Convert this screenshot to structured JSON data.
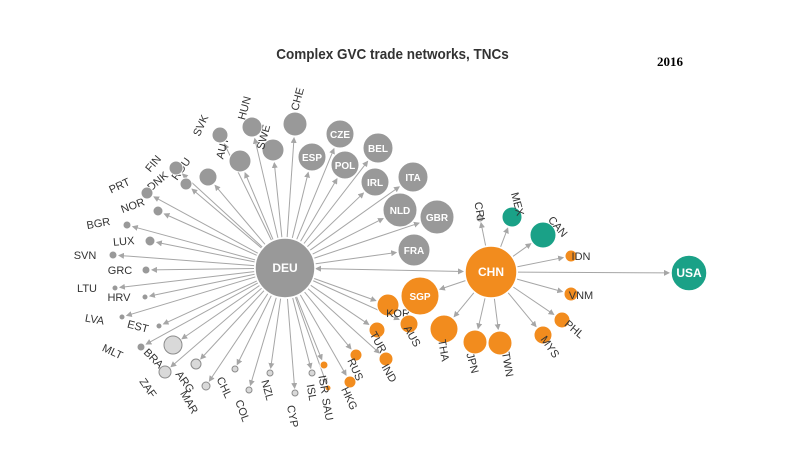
{
  "title": "Complex GVC trade networks, TNCs",
  "year": "2016",
  "colors": {
    "grey": "#999999",
    "lightgrey": "#d9d9d9",
    "orange": "#f28c1e",
    "green": "#1aa187",
    "edge": "#a6a6a6",
    "stroke": "#6b6b6b"
  },
  "hubs": [
    "DEU",
    "CHN",
    "USA"
  ],
  "hub_links": [
    {
      "from": "DEU",
      "to": "CHN",
      "bidirectional": true
    },
    {
      "from": "CHN",
      "to": "USA",
      "bidirectional": false
    }
  ],
  "nodes": [
    {
      "id": "DEU",
      "color": "grey",
      "hub": true
    },
    {
      "id": "CHN",
      "color": "orange",
      "hub": true
    },
    {
      "id": "USA",
      "color": "green",
      "hub": true
    },
    {
      "id": "CZE",
      "color": "grey",
      "parent": "DEU",
      "inside": true
    },
    {
      "id": "ESP",
      "color": "grey",
      "parent": "DEU",
      "inside": true
    },
    {
      "id": "BEL",
      "color": "grey",
      "parent": "DEU",
      "inside": true
    },
    {
      "id": "POL",
      "color": "grey",
      "parent": "DEU",
      "inside": true
    },
    {
      "id": "IRL",
      "color": "grey",
      "parent": "DEU",
      "inside": true
    },
    {
      "id": "ITA",
      "color": "grey",
      "parent": "DEU",
      "inside": true
    },
    {
      "id": "NLD",
      "color": "grey",
      "parent": "DEU",
      "inside": true
    },
    {
      "id": "GBR",
      "color": "grey",
      "parent": "DEU",
      "inside": true
    },
    {
      "id": "FRA",
      "color": "grey",
      "parent": "DEU",
      "inside": true
    },
    {
      "id": "CHE",
      "color": "grey",
      "parent": "DEU"
    },
    {
      "id": "SWE",
      "color": "grey",
      "parent": "DEU"
    },
    {
      "id": "HUN",
      "color": "grey",
      "parent": "DEU"
    },
    {
      "id": "AUT",
      "color": "grey",
      "parent": "DEU"
    },
    {
      "id": "SVK",
      "color": "grey",
      "parent": "DEU"
    },
    {
      "id": "ROU",
      "color": "grey",
      "parent": "DEU"
    },
    {
      "id": "FIN",
      "color": "grey",
      "parent": "DEU"
    },
    {
      "id": "DNK",
      "color": "grey",
      "parent": "DEU"
    },
    {
      "id": "PRT",
      "color": "grey",
      "parent": "DEU"
    },
    {
      "id": "NOR",
      "color": "grey",
      "parent": "DEU"
    },
    {
      "id": "BGR",
      "color": "grey",
      "parent": "DEU"
    },
    {
      "id": "LUX",
      "color": "grey",
      "parent": "DEU"
    },
    {
      "id": "SVN",
      "color": "grey",
      "parent": "DEU"
    },
    {
      "id": "GRC",
      "color": "grey",
      "parent": "DEU"
    },
    {
      "id": "LTU",
      "color": "grey",
      "parent": "DEU"
    },
    {
      "id": "HRV",
      "color": "grey",
      "parent": "DEU"
    },
    {
      "id": "LVA",
      "color": "grey",
      "parent": "DEU"
    },
    {
      "id": "EST",
      "color": "grey",
      "parent": "DEU"
    },
    {
      "id": "MLT",
      "color": "grey",
      "parent": "DEU"
    },
    {
      "id": "BRA",
      "color": "lightgrey",
      "parent": "DEU"
    },
    {
      "id": "ZAF",
      "color": "lightgrey",
      "parent": "DEU"
    },
    {
      "id": "ARG",
      "color": "lightgrey",
      "parent": "DEU"
    },
    {
      "id": "MAR",
      "color": "lightgrey",
      "parent": "DEU"
    },
    {
      "id": "CHL",
      "color": "lightgrey",
      "parent": "DEU"
    },
    {
      "id": "COL",
      "color": "lightgrey",
      "parent": "DEU"
    },
    {
      "id": "NZL",
      "color": "lightgrey",
      "parent": "DEU"
    },
    {
      "id": "CYP",
      "color": "lightgrey",
      "parent": "DEU"
    },
    {
      "id": "ISL",
      "color": "lightgrey",
      "parent": "DEU"
    },
    {
      "id": "SAU",
      "color": "orange",
      "parent": "DEU"
    },
    {
      "id": "ISR",
      "color": "orange",
      "parent": "DEU"
    },
    {
      "id": "HKG",
      "color": "orange",
      "parent": "DEU"
    },
    {
      "id": "RUS",
      "color": "orange",
      "parent": "DEU"
    },
    {
      "id": "IND",
      "color": "orange",
      "parent": "DEU"
    },
    {
      "id": "TUR",
      "color": "orange",
      "parent": "DEU"
    },
    {
      "id": "KOR",
      "color": "orange",
      "parent": "DEU"
    },
    {
      "id": "AUS",
      "color": "orange",
      "parent": "DEU"
    },
    {
      "id": "SGP",
      "color": "orange",
      "parent": "CHN",
      "inside": true
    },
    {
      "id": "THA",
      "color": "orange",
      "parent": "CHN"
    },
    {
      "id": "JPN",
      "color": "orange",
      "parent": "CHN"
    },
    {
      "id": "TWN",
      "color": "orange",
      "parent": "CHN"
    },
    {
      "id": "MYS",
      "color": "orange",
      "parent": "CHN"
    },
    {
      "id": "PHL",
      "color": "orange",
      "parent": "CHN"
    },
    {
      "id": "VNM",
      "color": "orange",
      "parent": "CHN"
    },
    {
      "id": "IDN",
      "color": "orange",
      "parent": "CHN"
    },
    {
      "id": "CAN",
      "color": "green",
      "parent": "CHN"
    },
    {
      "id": "MEX",
      "color": "green",
      "parent": "CHN"
    },
    {
      "id": "CRI",
      "color": "lightgrey",
      "parent": "CHN"
    }
  ]
}
